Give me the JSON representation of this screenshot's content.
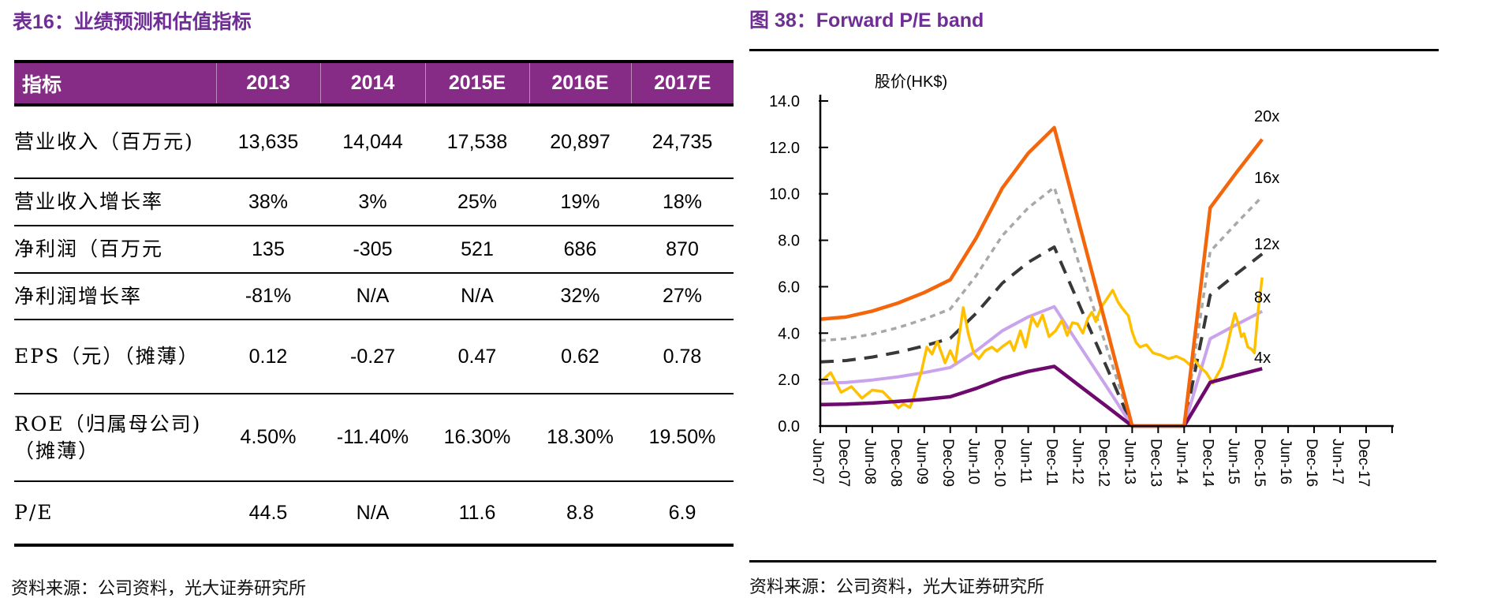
{
  "left": {
    "title": "表16：业绩预测和估值指标",
    "table": {
      "header": [
        "指标",
        "2013",
        "2014",
        "2015E",
        "2016E",
        "2017E"
      ],
      "rows": [
        {
          "label": "营业收入（百万元)",
          "values": [
            "13,635",
            "14,044",
            "17,538",
            "20,897",
            "24,735"
          ]
        },
        {
          "label": "营业收入增长率",
          "values": [
            "38%",
            "3%",
            "25%",
            "19%",
            "18%"
          ]
        },
        {
          "label": "净利润（百万元",
          "values": [
            "135",
            "-305",
            "521",
            "686",
            "870"
          ]
        },
        {
          "label": "净利润增长率",
          "values": [
            "-81%",
            "N/A",
            "N/A",
            "32%",
            "27%"
          ]
        },
        {
          "label": "EPS（元）（摊薄）",
          "values": [
            "0.12",
            "-0.27",
            "0.47",
            "0.62",
            "0.78"
          ]
        },
        {
          "label": "ROE（归属母公司)（摊薄）",
          "values": [
            "4.50%",
            "-11.40%",
            "16.30%",
            "18.30%",
            "19.50%"
          ]
        },
        {
          "label": "P/E",
          "values": [
            "44.5",
            "N/A",
            "11.6",
            "8.8",
            "6.9"
          ]
        }
      ]
    },
    "source": "资料来源：公司资料，光大证券研究所"
  },
  "right": {
    "title": "图 38：Forward P/E band",
    "source": "资料来源：公司资料，光大证券研究所"
  },
  "chart_data": {
    "type": "line",
    "title": "Forward P/E band",
    "y_axis_title": "股价(HK$)",
    "ylim": [
      0,
      14
    ],
    "ytick_step": 2,
    "y_tick_labels": [
      "14.0",
      "12.0",
      "10.0",
      "8.0",
      "6.0",
      "4.0",
      "2.0",
      "0.0"
    ],
    "grid": false,
    "legend_position": "right-inline-labels",
    "categories": [
      "Jun-07",
      "Dec-07",
      "Jun-08",
      "Dec-08",
      "Jun-09",
      "Dec-09",
      "Jun-10",
      "Dec-10",
      "Jun-11",
      "Dec-11",
      "Jun-12",
      "Dec-12",
      "Jun-13",
      "Dec-13",
      "Jun-14",
      "Dec-14",
      "Jun-15",
      "Dec-15",
      "Jun-16",
      "Dec-16",
      "Jun-17",
      "Dec-17"
    ],
    "series": [
      {
        "name": "16x",
        "color": "#A8A8A8",
        "style": "dash-short",
        "width": 3.5,
        "values": [
          3.68,
          3.76,
          3.96,
          4.24,
          4.6,
          5.04,
          6.48,
          8.2,
          9.4,
          10.28,
          6.84,
          3.44,
          0,
          0,
          0,
          7.52,
          8.72,
          9.88,
          null,
          null,
          null,
          null
        ]
      },
      {
        "name": "12x",
        "color": "#383838",
        "style": "dash-long",
        "width": 4,
        "values": [
          2.76,
          2.82,
          2.97,
          3.18,
          3.45,
          3.78,
          4.86,
          6.15,
          7.05,
          7.71,
          5.13,
          2.58,
          0,
          0,
          0,
          5.64,
          6.54,
          7.41,
          null,
          null,
          null,
          null
        ]
      },
      {
        "name": "8x",
        "color": "#C9A3EC",
        "style": "solid",
        "width": 4,
        "values": [
          1.84,
          1.88,
          1.98,
          2.12,
          2.3,
          2.52,
          3.24,
          4.1,
          4.7,
          5.14,
          3.42,
          1.72,
          0,
          0,
          0,
          3.76,
          4.36,
          4.94,
          null,
          null,
          null,
          null
        ]
      },
      {
        "name": "股价",
        "color": "#FFC000",
        "style": "solid",
        "width": 3.5,
        "points": [
          [
            0,
            1.9
          ],
          [
            0.4,
            2.3
          ],
          [
            0.8,
            1.45
          ],
          [
            1.2,
            1.7
          ],
          [
            1.6,
            1.2
          ],
          [
            2.0,
            1.55
          ],
          [
            2.4,
            1.48
          ],
          [
            2.7,
            1.15
          ],
          [
            3.0,
            0.78
          ],
          [
            3.2,
            0.95
          ],
          [
            3.45,
            0.8
          ],
          [
            3.6,
            1.25
          ],
          [
            3.9,
            2.4
          ],
          [
            4.1,
            3.4
          ],
          [
            4.3,
            3.1
          ],
          [
            4.5,
            3.65
          ],
          [
            4.8,
            2.72
          ],
          [
            5.0,
            3.25
          ],
          [
            5.2,
            2.75
          ],
          [
            5.5,
            5.1
          ],
          [
            5.7,
            3.95
          ],
          [
            5.9,
            3.15
          ],
          [
            6.1,
            2.9
          ],
          [
            6.35,
            3.25
          ],
          [
            6.6,
            3.4
          ],
          [
            6.8,
            3.22
          ],
          [
            7.0,
            3.42
          ],
          [
            7.3,
            3.65
          ],
          [
            7.45,
            3.25
          ],
          [
            7.7,
            4.1
          ],
          [
            7.9,
            3.4
          ],
          [
            8.15,
            4.7
          ],
          [
            8.35,
            4.3
          ],
          [
            8.55,
            4.78
          ],
          [
            8.8,
            3.85
          ],
          [
            9.05,
            4.1
          ],
          [
            9.3,
            4.55
          ],
          [
            9.5,
            3.9
          ],
          [
            9.7,
            4.45
          ],
          [
            9.9,
            4.4
          ],
          [
            10.1,
            4.0
          ],
          [
            10.3,
            4.65
          ],
          [
            10.45,
            4.9
          ],
          [
            10.6,
            4.5
          ],
          [
            10.8,
            5.1
          ],
          [
            11.25,
            5.85
          ],
          [
            11.45,
            5.35
          ],
          [
            11.6,
            5.1
          ],
          [
            11.85,
            4.75
          ],
          [
            12.0,
            4.05
          ],
          [
            12.15,
            3.6
          ],
          [
            12.3,
            3.4
          ],
          [
            12.55,
            3.5
          ],
          [
            12.8,
            3.15
          ],
          [
            13.1,
            3.05
          ],
          [
            13.4,
            2.9
          ],
          [
            13.7,
            3.0
          ],
          [
            14.0,
            2.85
          ],
          [
            14.2,
            2.65
          ],
          [
            14.4,
            2.85
          ],
          [
            14.6,
            2.55
          ],
          [
            14.85,
            2.3
          ],
          [
            15.1,
            1.85
          ],
          [
            15.45,
            2.55
          ],
          [
            15.65,
            3.4
          ],
          [
            15.85,
            4.4
          ],
          [
            15.95,
            4.85
          ],
          [
            16.1,
            4.35
          ],
          [
            16.2,
            3.85
          ],
          [
            16.3,
            3.98
          ],
          [
            16.45,
            3.4
          ],
          [
            16.6,
            3.3
          ],
          [
            16.7,
            3.15
          ],
          [
            16.85,
            5.0
          ],
          [
            17.0,
            6.4
          ]
        ]
      },
      {
        "name": "4x",
        "color": "#6E0A6E",
        "style": "solid",
        "width": 4.5,
        "values": [
          0.92,
          0.94,
          0.99,
          1.06,
          1.15,
          1.26,
          1.62,
          2.05,
          2.35,
          2.57,
          1.71,
          0.86,
          0,
          0,
          0,
          1.88,
          2.18,
          2.47,
          null,
          null,
          null,
          null
        ]
      },
      {
        "name": "20x",
        "color": "#F4660B",
        "style": "solid",
        "width": 4.5,
        "values": [
          4.6,
          4.7,
          4.95,
          5.3,
          5.75,
          6.3,
          8.1,
          10.25,
          11.75,
          12.85,
          8.55,
          4.3,
          0,
          0,
          0,
          9.4,
          10.9,
          12.35,
          null,
          null,
          null,
          null
        ]
      }
    ],
    "band_labels": [
      {
        "text": "20x",
        "value": 13.35
      },
      {
        "text": "16x",
        "value": 10.7
      },
      {
        "text": "12x",
        "value": 7.85
      },
      {
        "text": "8x",
        "value": 5.55
      },
      {
        "text": "4x",
        "value": 2.95
      }
    ]
  }
}
